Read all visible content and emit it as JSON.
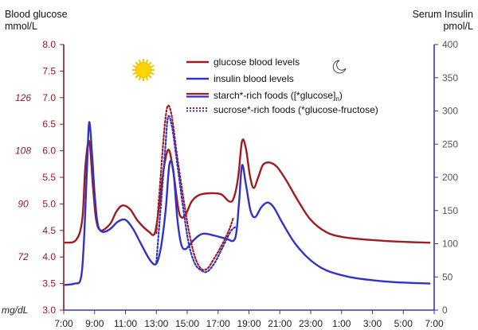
{
  "chart_data": {
    "type": "line",
    "left_axis": {
      "title_line1": "Blood glucose",
      "title_line2": "mmol/L",
      "ylim": [
        3.0,
        8.0
      ],
      "ticks": [
        "3.0",
        "3.5",
        "4.0",
        "4.5",
        "5.0",
        "5.5",
        "6.0",
        "6.5",
        "7.0",
        "7.5",
        "8.0"
      ],
      "color": "#8b1a1a"
    },
    "mgdl_axis": {
      "unit": "mg/dL",
      "ticks": [
        {
          "label": "72",
          "at_mmol": 4.0
        },
        {
          "label": "90",
          "at_mmol": 5.0
        },
        {
          "label": "108",
          "at_mmol": 6.0
        },
        {
          "label": "126",
          "at_mmol": 7.0
        }
      ]
    },
    "right_axis": {
      "title_line1": "Serum Insulin",
      "title_line2": "pmol/L",
      "ylim": [
        0,
        400
      ],
      "ticks": [
        "0",
        "50",
        "100",
        "150",
        "200",
        "250",
        "300",
        "350",
        "400"
      ],
      "color": "#3a3a9a"
    },
    "x": {
      "tick_labels": [
        "7:00",
        "9:00",
        "11:00",
        "13:00",
        "15:00",
        "17:00",
        "19:00",
        "21:00",
        "23:00",
        "1:00",
        "3:00",
        "5:00",
        "7:00"
      ],
      "range_hours": [
        7,
        31
      ]
    },
    "legend": {
      "position": "top-center",
      "items": [
        {
          "label": "glucose blood levels",
          "style": "solid",
          "color": "#a01c22"
        },
        {
          "label": "insulin blood levels",
          "style": "solid",
          "color": "#3232c8"
        },
        {
          "label_main": "starch*-rich foods ([*glucose]",
          "label_sub": "n",
          "label_end": ")",
          "style": "solid-pair"
        },
        {
          "label": "sucrose*-rich foods (*glucose-fructose)",
          "style": "dotted-pair"
        }
      ]
    },
    "series": [
      {
        "name": "glucose blood levels",
        "axis": "left",
        "style": "solid",
        "color": "#a01c22",
        "points": [
          [
            7.1,
            4.27
          ],
          [
            7.8,
            4.32
          ],
          [
            8.2,
            4.7
          ],
          [
            8.4,
            5.7
          ],
          [
            8.65,
            6.18
          ],
          [
            8.9,
            5.3
          ],
          [
            9.1,
            4.7
          ],
          [
            9.4,
            4.5
          ],
          [
            10.0,
            4.62
          ],
          [
            10.4,
            4.85
          ],
          [
            10.8,
            4.97
          ],
          [
            11.3,
            4.9
          ],
          [
            11.8,
            4.68
          ],
          [
            12.5,
            4.48
          ],
          [
            12.9,
            4.45
          ],
          [
            13.2,
            5.0
          ],
          [
            13.5,
            5.7
          ],
          [
            13.8,
            6.02
          ],
          [
            14.1,
            5.6
          ],
          [
            14.4,
            4.95
          ],
          [
            14.6,
            4.75
          ],
          [
            14.9,
            4.8
          ],
          [
            15.3,
            5.05
          ],
          [
            15.8,
            5.17
          ],
          [
            16.5,
            5.2
          ],
          [
            17.2,
            5.18
          ],
          [
            17.7,
            5.05
          ],
          [
            18.0,
            5.1
          ],
          [
            18.3,
            5.5
          ],
          [
            18.55,
            6.18
          ],
          [
            18.8,
            6.05
          ],
          [
            19.05,
            5.55
          ],
          [
            19.3,
            5.3
          ],
          [
            19.6,
            5.5
          ],
          [
            19.9,
            5.73
          ],
          [
            20.3,
            5.78
          ],
          [
            20.8,
            5.7
          ],
          [
            21.4,
            5.45
          ],
          [
            22.2,
            5.05
          ],
          [
            23.0,
            4.7
          ],
          [
            24.0,
            4.47
          ],
          [
            25.0,
            4.38
          ],
          [
            26.5,
            4.33
          ],
          [
            28.0,
            4.3
          ],
          [
            29.5,
            4.28
          ],
          [
            30.7,
            4.27
          ]
        ]
      },
      {
        "name": "insulin blood levels",
        "axis": "right",
        "style": "solid",
        "color": "#3232c8",
        "points": [
          [
            7.1,
            38
          ],
          [
            7.7,
            40
          ],
          [
            8.1,
            47
          ],
          [
            8.3,
            100
          ],
          [
            8.5,
            210
          ],
          [
            8.65,
            283
          ],
          [
            8.85,
            230
          ],
          [
            9.0,
            175
          ],
          [
            9.2,
            130
          ],
          [
            9.5,
            118
          ],
          [
            10.0,
            122
          ],
          [
            10.5,
            133
          ],
          [
            11.0,
            136
          ],
          [
            11.5,
            122
          ],
          [
            12.0,
            100
          ],
          [
            12.6,
            75
          ],
          [
            13.0,
            70
          ],
          [
            13.3,
            95
          ],
          [
            13.6,
            150
          ],
          [
            13.85,
            220
          ],
          [
            14.1,
            210
          ],
          [
            14.35,
            140
          ],
          [
            14.6,
            100
          ],
          [
            14.9,
            92
          ],
          [
            15.4,
            105
          ],
          [
            16.0,
            115
          ],
          [
            16.8,
            112
          ],
          [
            17.5,
            108
          ],
          [
            18.1,
            108
          ],
          [
            18.35,
            160
          ],
          [
            18.55,
            218
          ],
          [
            18.8,
            190
          ],
          [
            19.1,
            150
          ],
          [
            19.4,
            140
          ],
          [
            19.8,
            155
          ],
          [
            20.2,
            162
          ],
          [
            20.6,
            155
          ],
          [
            21.2,
            130
          ],
          [
            22.0,
            100
          ],
          [
            23.0,
            75
          ],
          [
            24.0,
            60
          ],
          [
            25.5,
            50
          ],
          [
            27.0,
            45
          ],
          [
            28.5,
            42
          ],
          [
            30.7,
            40
          ]
        ]
      },
      {
        "name": "sucrose glucose",
        "axis": "left",
        "style": "dotted",
        "color": "#a01c22",
        "points": [
          [
            13.0,
            4.45
          ],
          [
            13.3,
            5.6
          ],
          [
            13.55,
            6.5
          ],
          [
            13.75,
            6.85
          ],
          [
            14.0,
            6.65
          ],
          [
            14.3,
            6.0
          ],
          [
            14.7,
            5.2
          ],
          [
            15.1,
            4.5
          ],
          [
            15.5,
            4.0
          ],
          [
            15.9,
            3.78
          ],
          [
            16.3,
            3.78
          ],
          [
            16.7,
            3.95
          ],
          [
            17.2,
            4.2
          ],
          [
            17.7,
            4.5
          ],
          [
            18.0,
            4.75
          ]
        ]
      },
      {
        "name": "sucrose insulin",
        "axis": "right",
        "style": "dotted",
        "color": "#3232c8",
        "points": [
          [
            13.0,
            72
          ],
          [
            13.3,
            160
          ],
          [
            13.55,
            235
          ],
          [
            13.75,
            290
          ],
          [
            14.0,
            278
          ],
          [
            14.3,
            230
          ],
          [
            14.7,
            160
          ],
          [
            15.1,
            100
          ],
          [
            15.5,
            70
          ],
          [
            15.9,
            60
          ],
          [
            16.3,
            58
          ],
          [
            16.8,
            72
          ],
          [
            17.3,
            95
          ],
          [
            17.8,
            118
          ],
          [
            18.1,
            125
          ]
        ]
      }
    ],
    "icons": [
      "sun-icon",
      "moon-icon"
    ]
  }
}
